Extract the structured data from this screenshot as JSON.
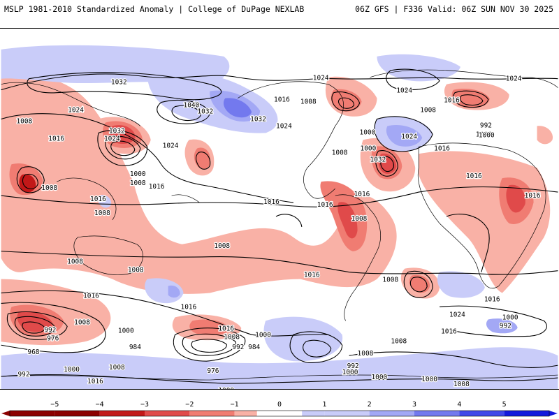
{
  "header": {
    "left_title": "MSLP 1981-2010 Standardized Anomaly | College of DuPage NEXLAB",
    "right_title": "06Z GFS | F336 Valid: 06Z SUN NOV 30 2025"
  },
  "colors": {
    "neg5": "#8b0000",
    "neg4": "#c21818",
    "neg3": "#e04a4a",
    "neg2": "#f07c72",
    "neg1": "#f9b1a6",
    "neutral": "#ffffff",
    "pos1": "#c9ccf9",
    "pos2": "#a3a8f5",
    "pos3": "#7379ee",
    "pos4": "#4047e8",
    "pos5": "#1419dc",
    "land": "#000000",
    "contour": "#000000"
  },
  "colorbar": {
    "ticks": [
      {
        "value": -5,
        "label": "−5"
      },
      {
        "value": -4,
        "label": "−4"
      },
      {
        "value": -3,
        "label": "−3"
      },
      {
        "value": -2,
        "label": "−2"
      },
      {
        "value": -1,
        "label": "−1"
      },
      {
        "value": 0,
        "label": "0"
      },
      {
        "value": 1,
        "label": "1"
      },
      {
        "value": 2,
        "label": "2"
      },
      {
        "value": 3,
        "label": "3"
      },
      {
        "value": 4,
        "label": "4"
      },
      {
        "value": 5,
        "label": "5"
      }
    ]
  },
  "isobar_labels": [
    {
      "text": "1032",
      "label_id": "a"
    },
    {
      "text": "1024",
      "label_id": "b"
    },
    {
      "text": "1024",
      "label_id": "c"
    },
    {
      "text": "1008",
      "label_id": "d"
    },
    {
      "text": "1024",
      "label_id": "e"
    },
    {
      "text": "1040",
      "label_id": "f"
    },
    {
      "text": "1032",
      "label_id": "g"
    },
    {
      "text": "1016",
      "label_id": "h"
    },
    {
      "text": "1008",
      "label_id": "i"
    },
    {
      "text": "1024",
      "label_id": "j"
    },
    {
      "text": "1016",
      "label_id": "k"
    },
    {
      "text": "1008",
      "label_id": "l"
    },
    {
      "text": "1032",
      "label_id": "m"
    },
    {
      "text": "1024",
      "label_id": "n"
    },
    {
      "text": "1016",
      "label_id": "o"
    },
    {
      "text": "1032",
      "label_id": "p"
    },
    {
      "text": "1024",
      "label_id": "q"
    },
    {
      "text": "1024",
      "label_id": "r"
    },
    {
      "text": "1000",
      "label_id": "s"
    },
    {
      "text": "1008",
      "label_id": "t"
    },
    {
      "text": "1016",
      "label_id": "u"
    },
    {
      "text": "1008",
      "label_id": "v"
    },
    {
      "text": "1000",
      "label_id": "w"
    },
    {
      "text": "1024",
      "label_id": "x"
    },
    {
      "text": "1008",
      "label_id": "y"
    },
    {
      "text": "1000",
      "label_id": "z"
    },
    {
      "text": "1008",
      "label_id": "aa"
    },
    {
      "text": "1032",
      "label_id": "ab"
    },
    {
      "text": "1016",
      "label_id": "ac"
    },
    {
      "text": "1016",
      "label_id": "ad"
    },
    {
      "text": "1016",
      "label_id": "ae"
    },
    {
      "text": "1016",
      "label_id": "af"
    },
    {
      "text": "992",
      "label_id": "ag"
    },
    {
      "text": "1000",
      "label_id": "ah"
    },
    {
      "text": "1016",
      "label_id": "ai"
    },
    {
      "text": "1016",
      "label_id": "aj"
    },
    {
      "text": "1008",
      "label_id": "ak"
    },
    {
      "text": "1016",
      "label_id": "al"
    },
    {
      "text": "1008",
      "label_id": "am"
    },
    {
      "text": "1008",
      "label_id": "an"
    },
    {
      "text": "1008",
      "label_id": "ao"
    },
    {
      "text": "1016",
      "label_id": "ap"
    },
    {
      "text": "1016",
      "label_id": "aq"
    },
    {
      "text": "1008",
      "label_id": "ar"
    },
    {
      "text": "1016",
      "label_id": "as"
    },
    {
      "text": "1008",
      "label_id": "at"
    },
    {
      "text": "1008",
      "label_id": "au"
    },
    {
      "text": "1016",
      "label_id": "av"
    },
    {
      "text": "1016",
      "label_id": "aw"
    },
    {
      "text": "1024",
      "label_id": "ax"
    },
    {
      "text": "1000",
      "label_id": "ay"
    },
    {
      "text": "992",
      "label_id": "az"
    },
    {
      "text": "1008",
      "label_id": "ba"
    },
    {
      "text": "992",
      "label_id": "bb"
    },
    {
      "text": "976",
      "label_id": "bc"
    },
    {
      "text": "1000",
      "label_id": "bd"
    },
    {
      "text": "968",
      "label_id": "be"
    },
    {
      "text": "984",
      "label_id": "bf"
    },
    {
      "text": "1016",
      "label_id": "bg"
    },
    {
      "text": "1008",
      "label_id": "bh"
    },
    {
      "text": "1000",
      "label_id": "bi"
    },
    {
      "text": "992",
      "label_id": "bj"
    },
    {
      "text": "984",
      "label_id": "bk"
    },
    {
      "text": "976",
      "label_id": "bl"
    },
    {
      "text": "1000",
      "label_id": "bm"
    },
    {
      "text": "1000",
      "label_id": "bn"
    },
    {
      "text": "1008",
      "label_id": "bo"
    },
    {
      "text": "992",
      "label_id": "bp"
    },
    {
      "text": "1000",
      "label_id": "bq"
    },
    {
      "text": "1000",
      "label_id": "br"
    },
    {
      "text": "1000",
      "label_id": "bs"
    },
    {
      "text": "1008",
      "label_id": "bt"
    },
    {
      "text": "992",
      "label_id": "bu"
    },
    {
      "text": "1000",
      "label_id": "bv"
    },
    {
      "text": "1016",
      "label_id": "bw"
    },
    {
      "text": "1008",
      "label_id": "bx"
    }
  ]
}
